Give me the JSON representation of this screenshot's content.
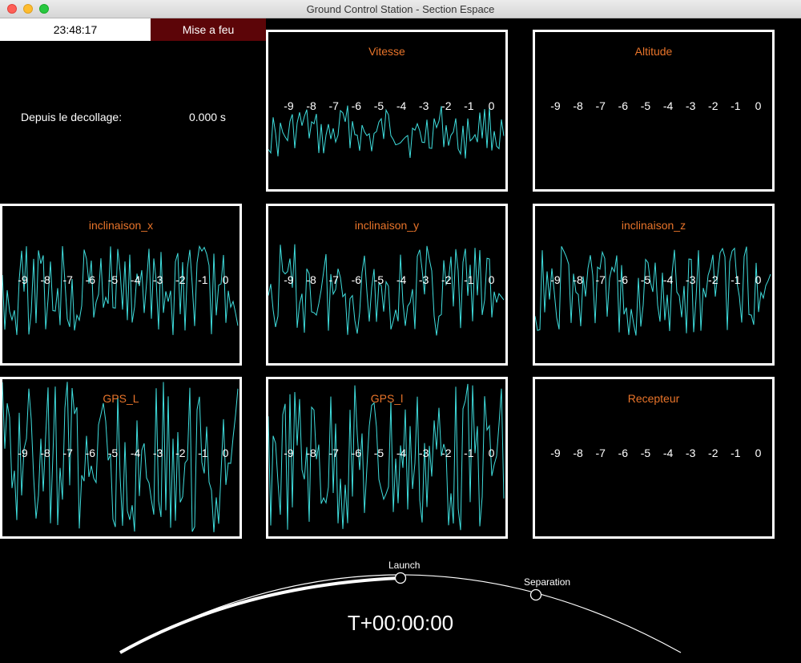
{
  "window": {
    "title": "Ground Control Station - Section Espace"
  },
  "header": {
    "clock": "23:48:17",
    "fire_button": "Mise a feu"
  },
  "since": {
    "label": "Depuis le decollage:",
    "value": "0.000 s"
  },
  "panels": [
    {
      "title": "Vitesse",
      "signal": "medium"
    },
    {
      "title": "Altitude",
      "signal": "none"
    },
    {
      "title": "inclinaison_x",
      "signal": "high"
    },
    {
      "title": "inclinaison_y",
      "signal": "high"
    },
    {
      "title": "inclinaison_z",
      "signal": "high"
    },
    {
      "title": "GPS_L",
      "signal": "full"
    },
    {
      "title": "GPS_l",
      "signal": "full"
    },
    {
      "title": "Recepteur",
      "signal": "flat"
    }
  ],
  "ticks": [
    "-9",
    "-8",
    "-7",
    "-6",
    "-5",
    "-4",
    "-3",
    "-2",
    "-1",
    "0"
  ],
  "timeline": {
    "milestones": [
      "Launch",
      "Separation"
    ],
    "mission_time": "T+00:00:00"
  },
  "colors": {
    "accent": "#e8742a",
    "trace": "#3fdede",
    "fire_bg": "#5c0508"
  }
}
